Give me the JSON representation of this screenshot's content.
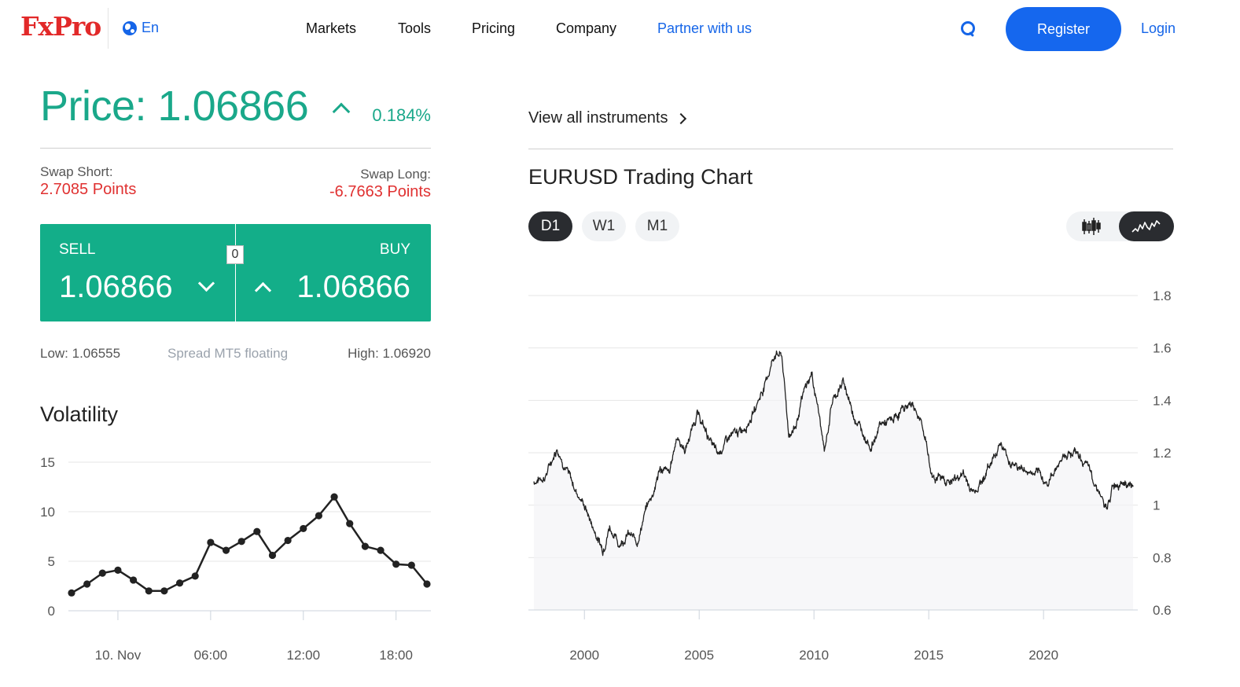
{
  "header": {
    "logo": "FxPro",
    "lang": "En",
    "nav": [
      "Markets",
      "Tools",
      "Pricing",
      "Company"
    ],
    "partner": "Partner with us",
    "register": "Register",
    "login": "Login"
  },
  "price": {
    "label": "Price: 1.06866",
    "change": "0.184%"
  },
  "swap": {
    "short_label": "Swap Short:",
    "short_value": "2.7085 Points",
    "long_label": "Swap Long:",
    "long_value": "-6.7663 Points"
  },
  "trade": {
    "sell_label": "SELL",
    "sell_price": "1.06866",
    "buy_label": "BUY",
    "buy_price": "1.06866",
    "spread": "0"
  },
  "range": {
    "low": "Low: 1.06555",
    "spread_text": "Spread MT5 floating",
    "high": "High: 1.06920"
  },
  "volatility": {
    "title": "Volatility"
  },
  "right": {
    "view_all": "View all instruments",
    "chart_title": "EURUSD Trading Chart",
    "timeframes": [
      "D1",
      "W1",
      "M1"
    ],
    "active_timeframe": "D1",
    "chart_type_active": "line",
    "icons": {
      "candle": "candlestick-icon",
      "line": "line-chart-icon"
    }
  },
  "colors": {
    "accent": "#13ae89",
    "price_green": "#1aa88a",
    "brand_red": "#e22929",
    "link_blue": "#1565e8",
    "negative": "#e03131"
  },
  "chart_data": [
    {
      "type": "line",
      "title": "Volatility",
      "x_ticks": [
        "10. Nov",
        "06:00",
        "12:00",
        "18:00"
      ],
      "y_ticks": [
        0,
        5,
        10,
        15
      ],
      "ylim": [
        0,
        15
      ],
      "values": [
        1.8,
        2.7,
        3.8,
        4.1,
        3.1,
        2.0,
        2.0,
        2.8,
        3.5,
        6.9,
        6.1,
        7.0,
        8.0,
        5.6,
        7.1,
        8.3,
        9.6,
        11.5,
        8.8,
        6.5,
        6.1,
        4.7,
        4.6,
        2.7
      ],
      "tick_index": [
        3,
        9,
        15,
        21
      ],
      "grid": true
    },
    {
      "type": "area",
      "title": "EURUSD Trading Chart",
      "x_ticks": [
        2000,
        2005,
        2010,
        2015,
        2020
      ],
      "y_ticks": [
        0.6,
        0.8,
        1,
        1.2,
        1.4,
        1.6,
        1.8
      ],
      "ylim": [
        0.6,
        1.8
      ],
      "xlim": [
        1997.8,
        2023.9
      ],
      "keypoints": [
        [
          1997.8,
          1.09
        ],
        [
          1998.3,
          1.11
        ],
        [
          1998.8,
          1.22
        ],
        [
          1999.2,
          1.14
        ],
        [
          1999.6,
          1.06
        ],
        [
          2000.0,
          1.0
        ],
        [
          2000.4,
          0.91
        ],
        [
          2000.8,
          0.83
        ],
        [
          2001.1,
          0.92
        ],
        [
          2001.5,
          0.85
        ],
        [
          2001.9,
          0.89
        ],
        [
          2002.3,
          0.86
        ],
        [
          2002.7,
          0.99
        ],
        [
          2003.0,
          1.05
        ],
        [
          2003.3,
          1.14
        ],
        [
          2003.7,
          1.12
        ],
        [
          2004.0,
          1.26
        ],
        [
          2004.4,
          1.21
        ],
        [
          2004.9,
          1.35
        ],
        [
          2005.3,
          1.28
        ],
        [
          2005.8,
          1.19
        ],
        [
          2006.3,
          1.26
        ],
        [
          2006.8,
          1.28
        ],
        [
          2007.3,
          1.34
        ],
        [
          2007.9,
          1.47
        ],
        [
          2008.3,
          1.58
        ],
        [
          2008.6,
          1.57
        ],
        [
          2008.9,
          1.27
        ],
        [
          2009.2,
          1.3
        ],
        [
          2009.6,
          1.44
        ],
        [
          2009.9,
          1.5
        ],
        [
          2010.2,
          1.36
        ],
        [
          2010.45,
          1.2
        ],
        [
          2010.8,
          1.4
        ],
        [
          2011.3,
          1.47
        ],
        [
          2011.7,
          1.35
        ],
        [
          2012.0,
          1.3
        ],
        [
          2012.5,
          1.22
        ],
        [
          2012.9,
          1.31
        ],
        [
          2013.4,
          1.32
        ],
        [
          2013.9,
          1.37
        ],
        [
          2014.3,
          1.39
        ],
        [
          2014.6,
          1.33
        ],
        [
          2014.9,
          1.24
        ],
        [
          2015.1,
          1.12
        ],
        [
          2015.5,
          1.1
        ],
        [
          2016.0,
          1.09
        ],
        [
          2016.5,
          1.12
        ],
        [
          2016.9,
          1.05
        ],
        [
          2017.3,
          1.09
        ],
        [
          2017.8,
          1.18
        ],
        [
          2018.1,
          1.24
        ],
        [
          2018.5,
          1.17
        ],
        [
          2019.0,
          1.14
        ],
        [
          2019.5,
          1.12
        ],
        [
          2019.9,
          1.11
        ],
        [
          2020.2,
          1.08
        ],
        [
          2020.5,
          1.14
        ],
        [
          2020.9,
          1.19
        ],
        [
          2021.3,
          1.21
        ],
        [
          2021.7,
          1.17
        ],
        [
          2022.0,
          1.13
        ],
        [
          2022.4,
          1.06
        ],
        [
          2022.75,
          0.97
        ],
        [
          2023.0,
          1.07
        ],
        [
          2023.4,
          1.1
        ],
        [
          2023.7,
          1.08
        ],
        [
          2023.9,
          1.07
        ]
      ],
      "grid": true
    }
  ]
}
